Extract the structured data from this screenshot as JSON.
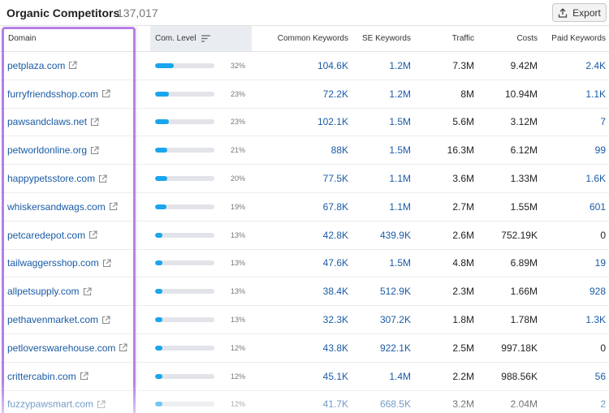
{
  "header": {
    "title": "Organic Competitors",
    "count": "137,017",
    "export_label": "Export"
  },
  "columns": {
    "domain": "Domain",
    "com_level": "Com. Level",
    "common_keywords": "Common Keywords",
    "se_keywords": "SE Keywords",
    "traffic": "Traffic",
    "costs": "Costs",
    "paid_keywords": "Paid Keywords"
  },
  "colors": {
    "link": "#1a5ba5",
    "bar_fill": "#19a6ee",
    "highlight": "#b57fe8"
  },
  "rows": [
    {
      "domain": "petplaza.com",
      "level": 32,
      "level_label": "32%",
      "common": "104.6K",
      "se": "1.2M",
      "traffic": "7.3M",
      "costs": "9.42M",
      "paid": "2.4K"
    },
    {
      "domain": "furryfriendsshop.com",
      "level": 23,
      "level_label": "23%",
      "common": "72.2K",
      "se": "1.2M",
      "traffic": "8M",
      "costs": "10.94M",
      "paid": "1.1K"
    },
    {
      "domain": "pawsandclaws.net",
      "level": 23,
      "level_label": "23%",
      "common": "102.1K",
      "se": "1.5M",
      "traffic": "5.6M",
      "costs": "3.12M",
      "paid": "7"
    },
    {
      "domain": "petworldonline.org",
      "level": 21,
      "level_label": "21%",
      "common": "88K",
      "se": "1.5M",
      "traffic": "16.3M",
      "costs": "6.12M",
      "paid": "99"
    },
    {
      "domain": "happypetsstore.com",
      "level": 20,
      "level_label": "20%",
      "common": "77.5K",
      "se": "1.1M",
      "traffic": "3.6M",
      "costs": "1.33M",
      "paid": "1.6K"
    },
    {
      "domain": "whiskersandwags.com",
      "level": 19,
      "level_label": "19%",
      "common": "67.8K",
      "se": "1.1M",
      "traffic": "2.7M",
      "costs": "1.55M",
      "paid": "601"
    },
    {
      "domain": "petcaredepot.com",
      "level": 13,
      "level_label": "13%",
      "common": "42.8K",
      "se": "439.9K",
      "traffic": "2.6M",
      "costs": "752.19K",
      "paid": "0"
    },
    {
      "domain": "tailwaggersshop.com",
      "level": 13,
      "level_label": "13%",
      "common": "47.6K",
      "se": "1.5M",
      "traffic": "4.8M",
      "costs": "6.89M",
      "paid": "19"
    },
    {
      "domain": "allpetsupply.com",
      "level": 13,
      "level_label": "13%",
      "common": "38.4K",
      "se": "512.9K",
      "traffic": "2.3M",
      "costs": "1.66M",
      "paid": "928"
    },
    {
      "domain": "pethavenmarket.com",
      "level": 13,
      "level_label": "13%",
      "common": "32.3K",
      "se": "307.2K",
      "traffic": "1.8M",
      "costs": "1.78M",
      "paid": "1.3K"
    },
    {
      "domain": "petloverswarehouse.com",
      "level": 12,
      "level_label": "12%",
      "common": "43.8K",
      "se": "922.1K",
      "traffic": "2.5M",
      "costs": "997.18K",
      "paid": "0"
    },
    {
      "domain": "crittercabin.com",
      "level": 12,
      "level_label": "12%",
      "common": "45.1K",
      "se": "1.4M",
      "traffic": "2.2M",
      "costs": "988.56K",
      "paid": "56"
    },
    {
      "domain": "fuzzypawsmart.com",
      "level": 12,
      "level_label": "12%",
      "common": "41.7K",
      "se": "668.5K",
      "traffic": "3.2M",
      "costs": "2.04M",
      "paid": "2"
    }
  ]
}
